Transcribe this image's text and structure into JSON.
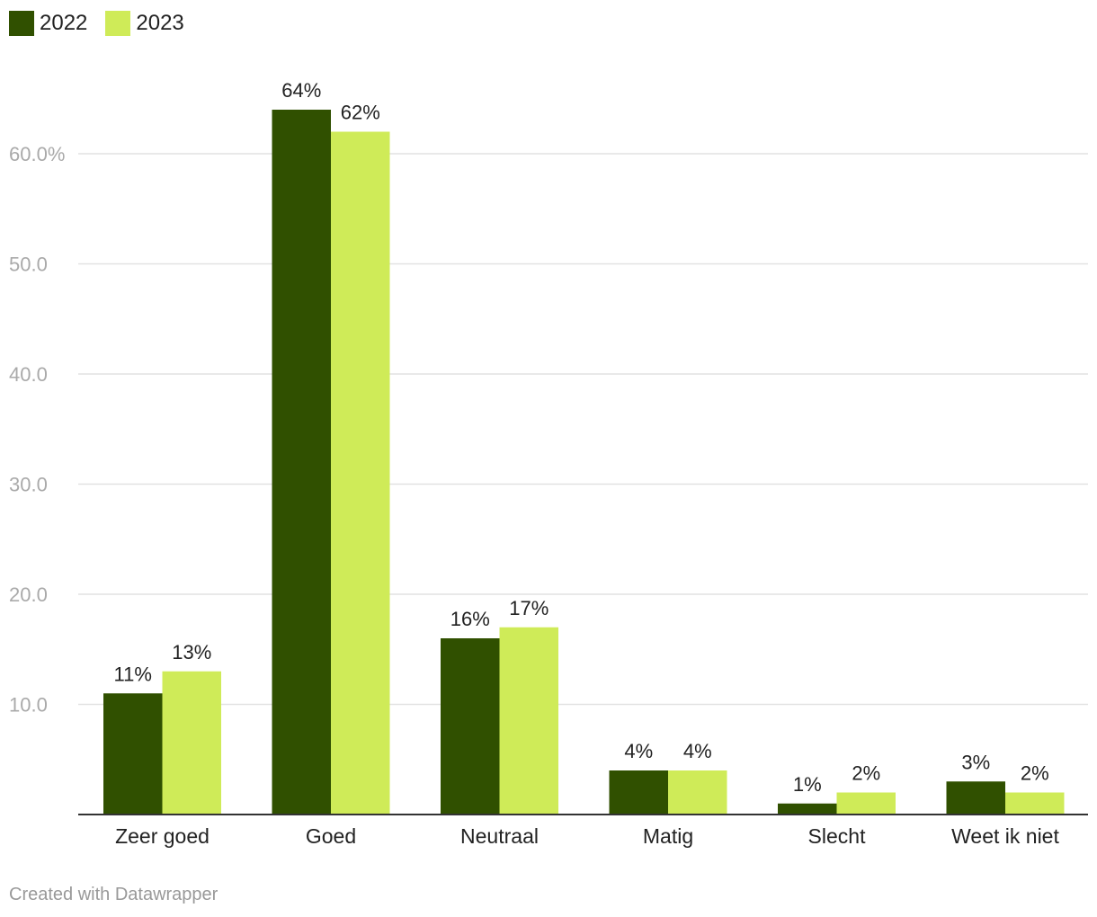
{
  "chart_data": {
    "type": "bar",
    "categories": [
      "Zeer goed",
      "Goed",
      "Neutraal",
      "Matig",
      "Slecht",
      "Weet ik niet"
    ],
    "series": [
      {
        "name": "2022",
        "color": "#305000",
        "values": [
          11,
          64,
          16,
          4,
          1,
          3
        ],
        "labels": [
          "11%",
          "64%",
          "16%",
          "4%",
          "1%",
          "3%"
        ]
      },
      {
        "name": "2023",
        "color": "#cfeb58",
        "values": [
          13,
          62,
          17,
          4,
          2,
          2
        ],
        "labels": [
          "13%",
          "62%",
          "17%",
          "4%",
          "2%",
          "2%"
        ]
      }
    ],
    "y_ticks": [
      10,
      20,
      30,
      40,
      50,
      60
    ],
    "y_tick_labels": [
      "10.0",
      "20.0",
      "30.0",
      "40.0",
      "50.0",
      "60.0%"
    ],
    "ylim": [
      0,
      60
    ],
    "grid": true,
    "legend_position": "top-left",
    "title": "",
    "xlabel": "",
    "ylabel": ""
  },
  "footer": {
    "credit": "Created with Datawrapper"
  }
}
